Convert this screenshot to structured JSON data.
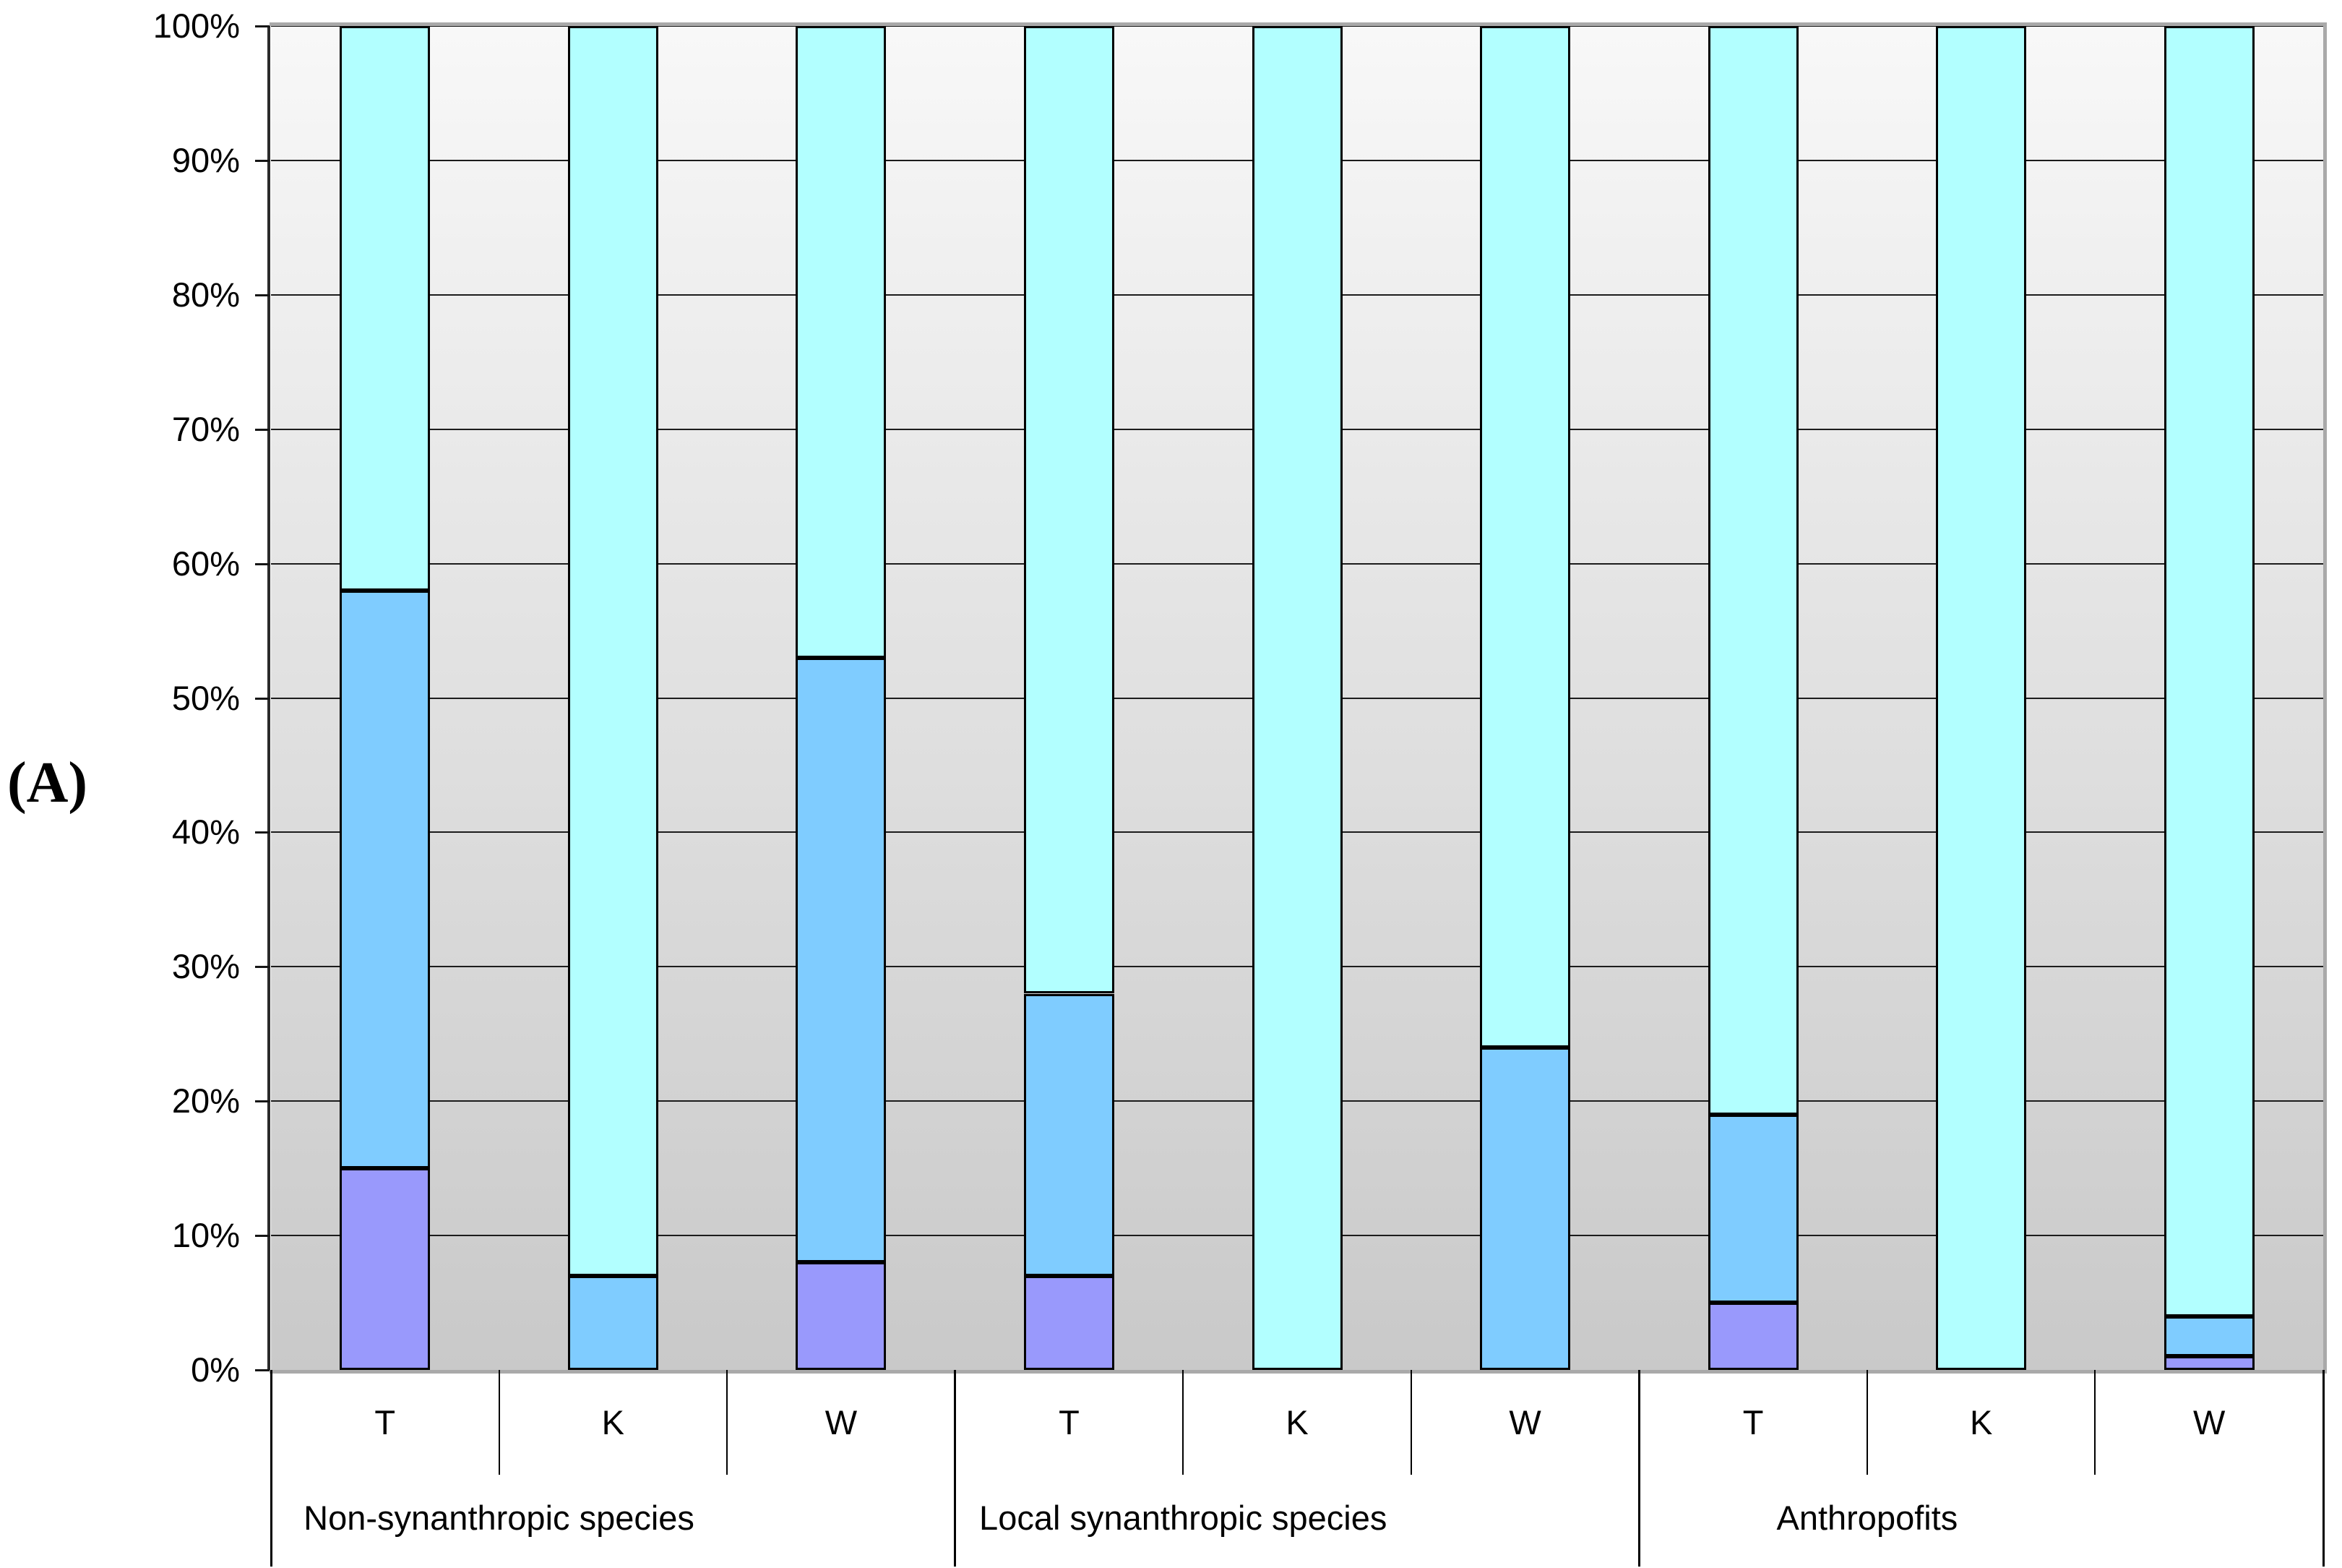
{
  "panel_label": "(A)",
  "y_axis": {
    "tick_labels": [
      "100%",
      "90%",
      "80%",
      "70%",
      "60%",
      "50%",
      "40%",
      "30%",
      "20%",
      "10%",
      "0%"
    ]
  },
  "x_axis": {
    "bar_labels": [
      "T",
      "K",
      "W",
      "T",
      "K",
      "W",
      "T",
      "K",
      "W"
    ],
    "group_labels": [
      "Non-synanthropic species",
      "Local synanthropic species",
      "Anthropofits"
    ]
  },
  "chart_data": {
    "type": "bar",
    "stacked": true,
    "unit": "percent",
    "title": "",
    "xlabel": "",
    "ylabel": "",
    "ylim": [
      0,
      100
    ],
    "grid": true,
    "legend": "none",
    "categories": [
      "T",
      "K",
      "W",
      "T",
      "K",
      "W",
      "T",
      "K",
      "W"
    ],
    "groups": [
      {
        "label": "Non-synanthropic species",
        "categories": [
          "T",
          "K",
          "W"
        ]
      },
      {
        "label": "Local synanthropic species",
        "categories": [
          "T",
          "K",
          "W"
        ]
      },
      {
        "label": "Anthropofits",
        "categories": [
          "T",
          "K",
          "W"
        ]
      }
    ],
    "series": [
      {
        "name": "purple-bottom-segment",
        "color": "#9999FC",
        "values": [
          15,
          0,
          8,
          7,
          0,
          0,
          5,
          0,
          1
        ]
      },
      {
        "name": "blue-middle-segment",
        "color": "#7FCCFF",
        "values": [
          43,
          7,
          45,
          21,
          0,
          24,
          14,
          0,
          3
        ]
      },
      {
        "name": "cyan-top-segment",
        "color": "#B2FFFF",
        "values": [
          42,
          93,
          47,
          72,
          100,
          76,
          81,
          100,
          96
        ]
      }
    ]
  },
  "colors": {
    "purple": "#9999FC",
    "blue": "#7FCCFF",
    "cyan": "#B2FFFF",
    "plot_bg_top": "#F8F8F8",
    "plot_bg_bottom": "#C9C9C9",
    "plot_border": "#A9A9A9",
    "gridline": "#1C1C1C",
    "bar_border": "#000000"
  }
}
